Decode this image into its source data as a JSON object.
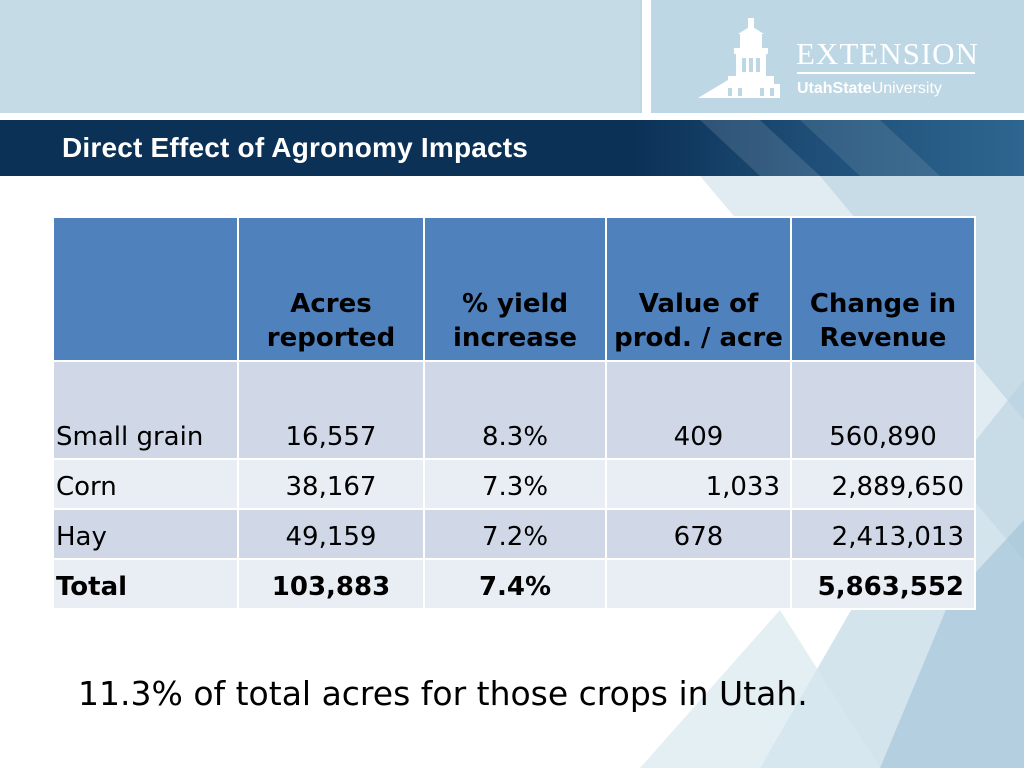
{
  "slide": {
    "title": "Direct Effect of Agronomy Impacts",
    "logo": {
      "extension": "EXTENSION",
      "usu_bold": "UtahState",
      "usu_regular": "University"
    },
    "footnote": "11.3% of total acres for those crops in Utah."
  },
  "table": {
    "headers": [
      "",
      "Acres reported",
      "% yield increase",
      "Value of prod. / acre",
      "Change in Revenue"
    ],
    "rows": [
      [
        "Small grain",
        "16,557",
        "8.3%",
        "409",
        "560,890"
      ],
      [
        "Corn",
        "38,167",
        "7.3%",
        "1,033",
        "2,889,650"
      ],
      [
        "Hay",
        "49,159",
        "7.2%",
        "678",
        "2,413,013"
      ],
      [
        "Total",
        "103,883",
        "7.4%",
        "",
        "5,863,552"
      ]
    ]
  },
  "colors": {
    "header_fill": "#4f81bd",
    "row_dark": "#d0d8e8",
    "row_light": "#e9edf4",
    "title_bar": "#0c3157"
  }
}
